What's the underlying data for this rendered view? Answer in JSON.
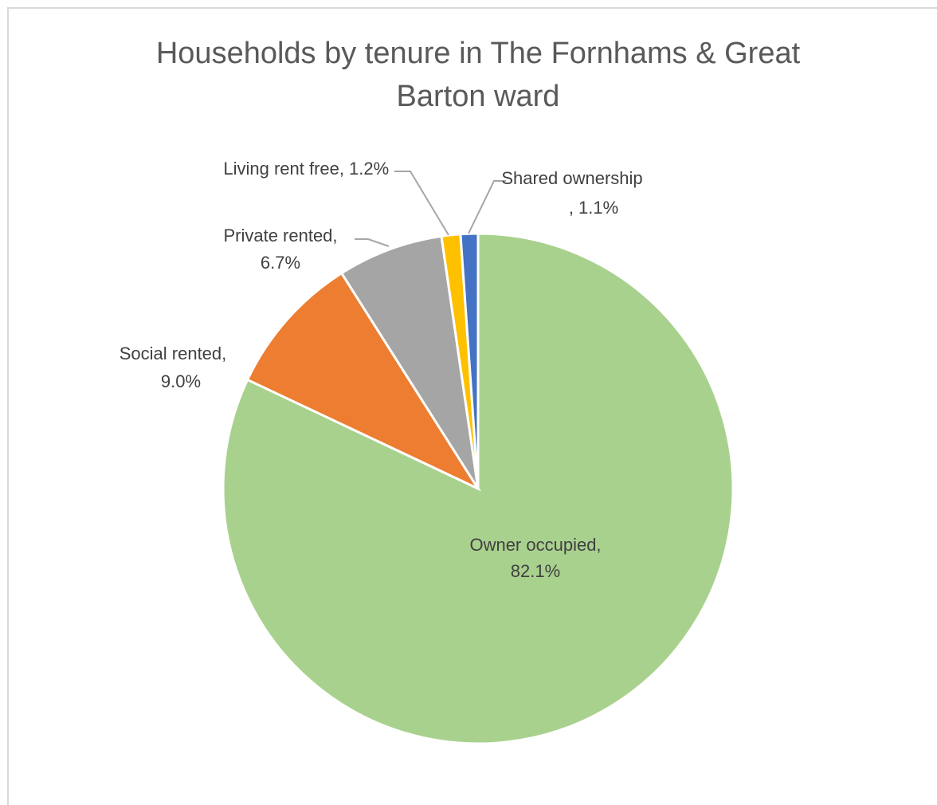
{
  "chart_data": {
    "type": "pie",
    "title": "Households by tenure in The Fornhams & Great Barton ward",
    "categories": [
      "Owner occupied,",
      "Social rented,",
      "Private rented,",
      "Living rent free,",
      "Shared ownership"
    ],
    "values": [
      82.1,
      9.0,
      6.7,
      1.2,
      1.1
    ],
    "value_labels": [
      "82.1%",
      "9.0%",
      "6.7%",
      "1.2%",
      ", 1.1%"
    ],
    "colors": [
      "#a9d18e",
      "#ed7d31",
      "#a5a5a5",
      "#ffc000",
      "#4472c4"
    ]
  }
}
